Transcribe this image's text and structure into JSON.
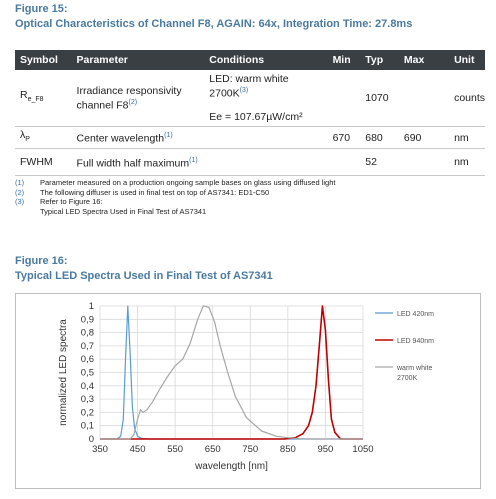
{
  "fig15": {
    "label": "Figure 15:",
    "title": "Optical Characteristics of Channel F8, AGAIN: 64x, Integration Time: 27.8ms"
  },
  "table": {
    "headers": [
      "Symbol",
      "Parameter",
      "Conditions",
      "Min",
      "Typ",
      "Max",
      "Unit"
    ],
    "rows": [
      {
        "symbol": "R",
        "symbol_sub": "e_F8",
        "parameter": "Irradiance responsivity channel F8",
        "parameter_ref": "(2)",
        "conditions_line1": "LED: warm white 2700K",
        "conditions_ref": "(3)",
        "conditions_line2": "Ee = 107.67µW/cm²",
        "min": "",
        "typ": "1070",
        "max": "",
        "unit": "counts"
      },
      {
        "symbol": "λ",
        "symbol_sub": "P",
        "parameter": "Center wavelength",
        "parameter_ref": "(1)",
        "conditions_line1": "",
        "conditions_ref": "",
        "conditions_line2": "",
        "min": "670",
        "typ": "680",
        "max": "690",
        "unit": "nm"
      },
      {
        "symbol": "FWHM",
        "symbol_sub": "",
        "parameter": "Full width half maximum",
        "parameter_ref": "(1)",
        "conditions_line1": "",
        "conditions_ref": "",
        "conditions_line2": "",
        "min": "",
        "typ": "52",
        "max": "",
        "unit": "nm"
      }
    ]
  },
  "notes": [
    {
      "num": "(1)",
      "text": "Parameter measured on a production ongoing sample bases on glass using diffused light"
    },
    {
      "num": "(2)",
      "text": "The following diffuser is used in final test on top of AS7341: ED1-C50"
    },
    {
      "num": "(3)",
      "text": "Refer to Figure 16:",
      "text2": "Typical LED Spectra Used in Final Test of AS7341"
    }
  ],
  "fig16": {
    "label": "Figure 16:",
    "title": "Typical LED Spectra Used in Final Test of AS7341"
  },
  "chart_data": {
    "type": "line",
    "title": "",
    "xlabel": "wavelength [nm]",
    "ylabel": "normalized LED spectra",
    "xlim": [
      350,
      1050
    ],
    "ylim": [
      0,
      1
    ],
    "xticks": [
      "350",
      "450",
      "550",
      "650",
      "750",
      "850",
      "950",
      "1050"
    ],
    "yticks": [
      "0",
      "0,1",
      "0,2",
      "0,3",
      "0,4",
      "0,5",
      "0,6",
      "0,7",
      "0,8",
      "0,9",
      "1"
    ],
    "grid": true,
    "legend_position": "right",
    "series": [
      {
        "name": "LED 420nm",
        "color": "#5b9bd5",
        "x": [
          350,
          395,
          405,
          412,
          418,
          424,
          430,
          436,
          442,
          450,
          460,
          480,
          1050
        ],
        "y": [
          0,
          0,
          0.02,
          0.15,
          0.6,
          1.0,
          0.65,
          0.25,
          0.08,
          0.02,
          0.005,
          0,
          0
        ]
      },
      {
        "name": "LED 940nm",
        "color": "#c00000",
        "x": [
          350,
          840,
          870,
          890,
          905,
          915,
          925,
          935,
          942,
          950,
          958,
          966,
          975,
          990,
          1050
        ],
        "y": [
          0,
          0,
          0.01,
          0.04,
          0.1,
          0.2,
          0.4,
          0.75,
          1.0,
          0.82,
          0.45,
          0.15,
          0.05,
          0,
          0
        ]
      },
      {
        "name": "warm white 2700K",
        "color": "#a6a6a6",
        "x": [
          350,
          430,
          440,
          450,
          458,
          465,
          475,
          490,
          510,
          530,
          550,
          570,
          590,
          610,
          625,
          640,
          655,
          670,
          690,
          710,
          740,
          780,
          820,
          850,
          880,
          900,
          1050
        ],
        "y": [
          0,
          0,
          0.03,
          0.15,
          0.22,
          0.2,
          0.22,
          0.28,
          0.38,
          0.47,
          0.55,
          0.6,
          0.72,
          0.9,
          1.0,
          0.99,
          0.88,
          0.7,
          0.5,
          0.32,
          0.16,
          0.06,
          0.02,
          0.01,
          0.003,
          0,
          0
        ]
      }
    ]
  }
}
